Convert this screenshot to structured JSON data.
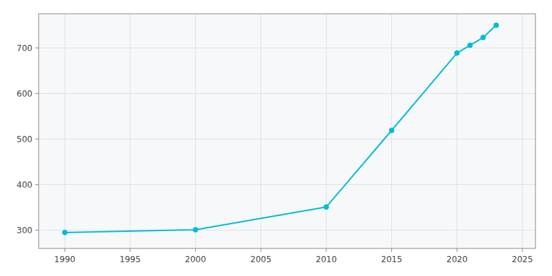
{
  "chart_data": {
    "type": "line",
    "x": [
      1990,
      2000,
      2010,
      2015,
      2020,
      2021,
      2022,
      2023
    ],
    "values": [
      295,
      301,
      351,
      519,
      689,
      706,
      723,
      750
    ],
    "color": "#00BCD4",
    "marker": "circle",
    "xlim": [
      1988,
      2026
    ],
    "ylim": [
      260,
      775
    ],
    "xticks": [
      1990,
      1995,
      2000,
      2005,
      2010,
      2015,
      2020,
      2025
    ],
    "yticks": [
      300,
      400,
      500,
      600,
      700
    ],
    "grid": true
  }
}
